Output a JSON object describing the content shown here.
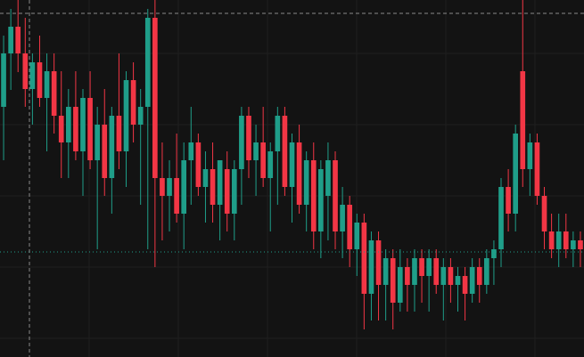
{
  "chart_data": {
    "type": "candlestick",
    "up_color": "#1f9e89",
    "down_color": "#f23645",
    "ylim": [
      0,
      401
    ],
    "ohlc": [
      [
        281,
        361,
        221,
        341
      ],
      [
        341,
        391,
        300,
        371
      ],
      [
        371,
        401,
        320,
        341
      ],
      [
        341,
        381,
        281,
        301
      ],
      [
        301,
        341,
        261,
        331
      ],
      [
        331,
        361,
        281,
        291
      ],
      [
        291,
        341,
        231,
        321
      ],
      [
        321,
        341,
        251,
        271
      ],
      [
        271,
        321,
        201,
        241
      ],
      [
        241,
        301,
        201,
        281
      ],
      [
        281,
        321,
        221,
        231
      ],
      [
        231,
        301,
        181,
        291
      ],
      [
        291,
        321,
        211,
        221
      ],
      [
        221,
        281,
        121,
        261
      ],
      [
        261,
        301,
        181,
        201
      ],
      [
        201,
        281,
        161,
        271
      ],
      [
        271,
        341,
        211,
        231
      ],
      [
        231,
        321,
        191,
        311
      ],
      [
        311,
        331,
        241,
        261
      ],
      [
        261,
        301,
        171,
        281
      ],
      [
        281,
        391,
        121,
        381
      ],
      [
        381,
        401,
        101,
        201
      ],
      [
        201,
        241,
        131,
        181
      ],
      [
        181,
        221,
        141,
        201
      ],
      [
        201,
        251,
        151,
        161
      ],
      [
        161,
        241,
        121,
        221
      ],
      [
        221,
        281,
        171,
        241
      ],
      [
        241,
        251,
        181,
        191
      ],
      [
        191,
        231,
        151,
        211
      ],
      [
        211,
        241,
        151,
        171
      ],
      [
        171,
        221,
        131,
        221
      ],
      [
        211,
        231,
        141,
        161
      ],
      [
        161,
        221,
        131,
        211
      ],
      [
        211,
        281,
        171,
        271
      ],
      [
        271,
        281,
        201,
        221
      ],
      [
        221,
        261,
        181,
        241
      ],
      [
        241,
        281,
        191,
        201
      ],
      [
        201,
        241,
        141,
        231
      ],
      [
        231,
        281,
        171,
        271
      ],
      [
        271,
        281,
        181,
        191
      ],
      [
        191,
        251,
        151,
        241
      ],
      [
        241,
        261,
        161,
        171
      ],
      [
        171,
        231,
        141,
        221
      ],
      [
        221,
        241,
        121,
        141
      ],
      [
        141,
        221,
        111,
        211
      ],
      [
        181,
        241,
        131,
        221
      ],
      [
        221,
        231,
        121,
        141
      ],
      [
        141,
        191,
        111,
        171
      ],
      [
        171,
        181,
        101,
        121
      ],
      [
        121,
        161,
        91,
        151
      ],
      [
        151,
        161,
        31,
        71
      ],
      [
        71,
        141,
        41,
        131
      ],
      [
        131,
        141,
        41,
        81
      ],
      [
        81,
        121,
        41,
        111
      ],
      [
        111,
        121,
        31,
        61
      ],
      [
        61,
        121,
        51,
        101
      ],
      [
        101,
        111,
        51,
        81
      ],
      [
        81,
        121,
        51,
        111
      ],
      [
        111,
        121,
        61,
        91
      ],
      [
        91,
        121,
        51,
        111
      ],
      [
        111,
        121,
        71,
        81
      ],
      [
        81,
        111,
        41,
        101
      ],
      [
        101,
        111,
        61,
        81
      ],
      [
        81,
        101,
        51,
        91
      ],
      [
        91,
        101,
        41,
        71
      ],
      [
        71,
        111,
        61,
        101
      ],
      [
        101,
        111,
        61,
        81
      ],
      [
        81,
        121,
        71,
        111
      ],
      [
        111,
        131,
        81,
        121
      ],
      [
        121,
        201,
        101,
        191
      ],
      [
        191,
        211,
        141,
        161
      ],
      [
        161,
        261,
        141,
        251
      ],
      [
        321,
        401,
        191,
        211
      ],
      [
        211,
        251,
        181,
        241
      ],
      [
        241,
        251,
        171,
        181
      ],
      [
        181,
        191,
        121,
        141
      ],
      [
        141,
        161,
        111,
        121
      ],
      [
        121,
        161,
        101,
        141
      ],
      [
        141,
        161,
        111,
        121
      ],
      [
        121,
        141,
        101,
        131
      ],
      [
        131,
        141,
        101,
        121
      ]
    ]
  }
}
